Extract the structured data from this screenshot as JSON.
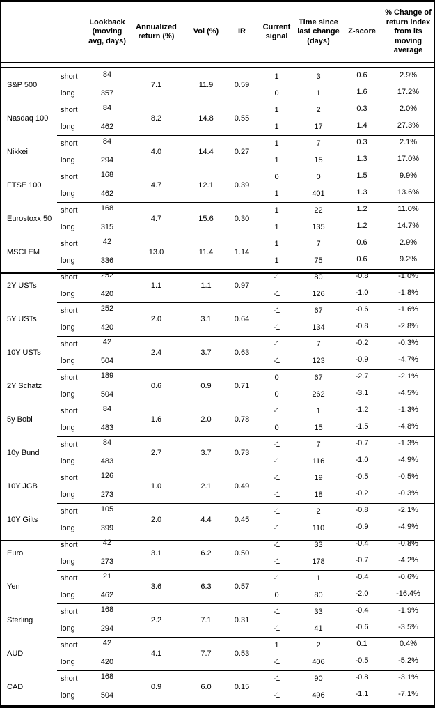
{
  "header": {
    "lookback": "Lookback\n(moving\navg, days)",
    "annualized_return": "Annualized\nreturn (%)",
    "vol": "Vol (%)",
    "ir": "IR",
    "current_signal": "Current\nsignal",
    "time_since": "Time since\nlast change\n(days)",
    "z_score": "Z-score",
    "pct_change": "% Change of\nreturn index\nfrom its\nmoving\naverage"
  },
  "sections": [
    {
      "groups": [
        {
          "asset": "S&P 500",
          "annualized_return": "7.1",
          "vol": "11.9",
          "ir": "0.59",
          "rows": [
            {
              "mode": "short",
              "lookback": "84",
              "signal": "1",
              "time_since": "3",
              "z_score": "0.6",
              "pct_change": "2.9%"
            },
            {
              "mode": "long",
              "lookback": "357",
              "signal": "0",
              "time_since": "1",
              "z_score": "1.6",
              "pct_change": "17.2%"
            }
          ]
        },
        {
          "asset": "Nasdaq 100",
          "annualized_return": "8.2",
          "vol": "14.8",
          "ir": "0.55",
          "rows": [
            {
              "mode": "short",
              "lookback": "84",
              "signal": "1",
              "time_since": "2",
              "z_score": "0.3",
              "pct_change": "2.0%"
            },
            {
              "mode": "long",
              "lookback": "462",
              "signal": "1",
              "time_since": "17",
              "z_score": "1.4",
              "pct_change": "27.3%"
            }
          ]
        },
        {
          "asset": "Nikkei",
          "annualized_return": "4.0",
          "vol": "14.4",
          "ir": "0.27",
          "rows": [
            {
              "mode": "short",
              "lookback": "84",
              "signal": "1",
              "time_since": "7",
              "z_score": "0.3",
              "pct_change": "2.1%"
            },
            {
              "mode": "long",
              "lookback": "294",
              "signal": "1",
              "time_since": "15",
              "z_score": "1.3",
              "pct_change": "17.0%"
            }
          ]
        },
        {
          "asset": "FTSE 100",
          "annualized_return": "4.7",
          "vol": "12.1",
          "ir": "0.39",
          "rows": [
            {
              "mode": "short",
              "lookback": "168",
              "signal": "0",
              "time_since": "0",
              "z_score": "1.5",
              "pct_change": "9.9%"
            },
            {
              "mode": "long",
              "lookback": "462",
              "signal": "1",
              "time_since": "401",
              "z_score": "1.3",
              "pct_change": "13.6%"
            }
          ]
        },
        {
          "asset": "Eurostoxx 50",
          "annualized_return": "4.7",
          "vol": "15.6",
          "ir": "0.30",
          "rows": [
            {
              "mode": "short",
              "lookback": "168",
              "signal": "1",
              "time_since": "22",
              "z_score": "1.2",
              "pct_change": "11.0%"
            },
            {
              "mode": "long",
              "lookback": "315",
              "signal": "1",
              "time_since": "135",
              "z_score": "1.2",
              "pct_change": "14.7%"
            }
          ]
        },
        {
          "asset": "MSCI EM",
          "annualized_return": "13.0",
          "vol": "11.4",
          "ir": "1.14",
          "rows": [
            {
              "mode": "short",
              "lookback": "42",
              "signal": "1",
              "time_since": "7",
              "z_score": "0.6",
              "pct_change": "2.9%"
            },
            {
              "mode": "long",
              "lookback": "336",
              "signal": "1",
              "time_since": "75",
              "z_score": "0.6",
              "pct_change": "9.2%"
            }
          ]
        }
      ]
    },
    {
      "groups": [
        {
          "asset": "2Y USTs",
          "annualized_return": "1.1",
          "vol": "1.1",
          "ir": "0.97",
          "rows": [
            {
              "mode": "short",
              "lookback": "252",
              "signal": "-1",
              "time_since": "80",
              "z_score": "-0.8",
              "pct_change": "-1.0%"
            },
            {
              "mode": "long",
              "lookback": "420",
              "signal": "-1",
              "time_since": "126",
              "z_score": "-1.0",
              "pct_change": "-1.8%"
            }
          ]
        },
        {
          "asset": "5Y USTs",
          "annualized_return": "2.0",
          "vol": "3.1",
          "ir": "0.64",
          "rows": [
            {
              "mode": "short",
              "lookback": "252",
              "signal": "-1",
              "time_since": "67",
              "z_score": "-0.6",
              "pct_change": "-1.6%"
            },
            {
              "mode": "long",
              "lookback": "420",
              "signal": "-1",
              "time_since": "134",
              "z_score": "-0.8",
              "pct_change": "-2.8%"
            }
          ]
        },
        {
          "asset": "10Y USTs",
          "annualized_return": "2.4",
          "vol": "3.7",
          "ir": "0.63",
          "rows": [
            {
              "mode": "short",
              "lookback": "42",
              "signal": "-1",
              "time_since": "7",
              "z_score": "-0.2",
              "pct_change": "-0.3%"
            },
            {
              "mode": "long",
              "lookback": "504",
              "signal": "-1",
              "time_since": "123",
              "z_score": "-0.9",
              "pct_change": "-4.7%"
            }
          ]
        },
        {
          "asset": "2Y Schatz",
          "annualized_return": "0.6",
          "vol": "0.9",
          "ir": "0.71",
          "rows": [
            {
              "mode": "short",
              "lookback": "189",
              "signal": "0",
              "time_since": "67",
              "z_score": "-2.7",
              "pct_change": "-2.1%"
            },
            {
              "mode": "long",
              "lookback": "504",
              "signal": "0",
              "time_since": "262",
              "z_score": "-3.1",
              "pct_change": "-4.5%"
            }
          ]
        },
        {
          "asset": "5y Bobl",
          "annualized_return": "1.6",
          "vol": "2.0",
          "ir": "0.78",
          "rows": [
            {
              "mode": "short",
              "lookback": "84",
              "signal": "-1",
              "time_since": "1",
              "z_score": "-1.2",
              "pct_change": "-1.3%"
            },
            {
              "mode": "long",
              "lookback": "483",
              "signal": "0",
              "time_since": "15",
              "z_score": "-1.5",
              "pct_change": "-4.8%"
            }
          ]
        },
        {
          "asset": "10y Bund",
          "annualized_return": "2.7",
          "vol": "3.7",
          "ir": "0.73",
          "rows": [
            {
              "mode": "short",
              "lookback": "84",
              "signal": "-1",
              "time_since": "7",
              "z_score": "-0.7",
              "pct_change": "-1.3%"
            },
            {
              "mode": "long",
              "lookback": "483",
              "signal": "-1",
              "time_since": "116",
              "z_score": "-1.0",
              "pct_change": "-4.9%"
            }
          ]
        },
        {
          "asset": "10Y JGB",
          "annualized_return": "1.0",
          "vol": "2.1",
          "ir": "0.49",
          "rows": [
            {
              "mode": "short",
              "lookback": "126",
              "signal": "-1",
              "time_since": "19",
              "z_score": "-0.5",
              "pct_change": "-0.5%"
            },
            {
              "mode": "long",
              "lookback": "273",
              "signal": "-1",
              "time_since": "18",
              "z_score": "-0.2",
              "pct_change": "-0.3%"
            }
          ]
        },
        {
          "asset": "10Y Gilts",
          "annualized_return": "2.0",
          "vol": "4.4",
          "ir": "0.45",
          "rows": [
            {
              "mode": "short",
              "lookback": "105",
              "signal": "-1",
              "time_since": "2",
              "z_score": "-0.8",
              "pct_change": "-2.1%"
            },
            {
              "mode": "long",
              "lookback": "399",
              "signal": "-1",
              "time_since": "110",
              "z_score": "-0.9",
              "pct_change": "-4.9%"
            }
          ]
        }
      ]
    },
    {
      "groups": [
        {
          "asset": "Euro",
          "annualized_return": "3.1",
          "vol": "6.2",
          "ir": "0.50",
          "rows": [
            {
              "mode": "short",
              "lookback": "42",
              "signal": "-1",
              "time_since": "33",
              "z_score": "-0.4",
              "pct_change": "-0.8%"
            },
            {
              "mode": "long",
              "lookback": "273",
              "signal": "-1",
              "time_since": "178",
              "z_score": "-0.7",
              "pct_change": "-4.2%"
            }
          ]
        },
        {
          "asset": "Yen",
          "annualized_return": "3.6",
          "vol": "6.3",
          "ir": "0.57",
          "rows": [
            {
              "mode": "short",
              "lookback": "21",
              "signal": "-1",
              "time_since": "1",
              "z_score": "-0.4",
              "pct_change": "-0.6%"
            },
            {
              "mode": "long",
              "lookback": "462",
              "signal": "0",
              "time_since": "80",
              "z_score": "-2.0",
              "pct_change": "-16.4%"
            }
          ]
        },
        {
          "asset": "Sterling",
          "annualized_return": "2.2",
          "vol": "7.1",
          "ir": "0.31",
          "rows": [
            {
              "mode": "short",
              "lookback": "168",
              "signal": "-1",
              "time_since": "33",
              "z_score": "-0.4",
              "pct_change": "-1.9%"
            },
            {
              "mode": "long",
              "lookback": "294",
              "signal": "-1",
              "time_since": "41",
              "z_score": "-0.6",
              "pct_change": "-3.5%"
            }
          ]
        },
        {
          "asset": "AUD",
          "annualized_return": "4.1",
          "vol": "7.7",
          "ir": "0.53",
          "rows": [
            {
              "mode": "short",
              "lookback": "42",
              "signal": "1",
              "time_since": "2",
              "z_score": "0.1",
              "pct_change": "0.4%"
            },
            {
              "mode": "long",
              "lookback": "420",
              "signal": "-1",
              "time_since": "406",
              "z_score": "-0.5",
              "pct_change": "-5.2%"
            }
          ]
        },
        {
          "asset": "CAD",
          "annualized_return": "0.9",
          "vol": "6.0",
          "ir": "0.15",
          "rows": [
            {
              "mode": "short",
              "lookback": "168",
              "signal": "-1",
              "time_since": "90",
              "z_score": "-0.8",
              "pct_change": "-3.1%"
            },
            {
              "mode": "long",
              "lookback": "504",
              "signal": "-1",
              "time_since": "496",
              "z_score": "-1.1",
              "pct_change": "-7.1%"
            }
          ]
        }
      ]
    }
  ]
}
